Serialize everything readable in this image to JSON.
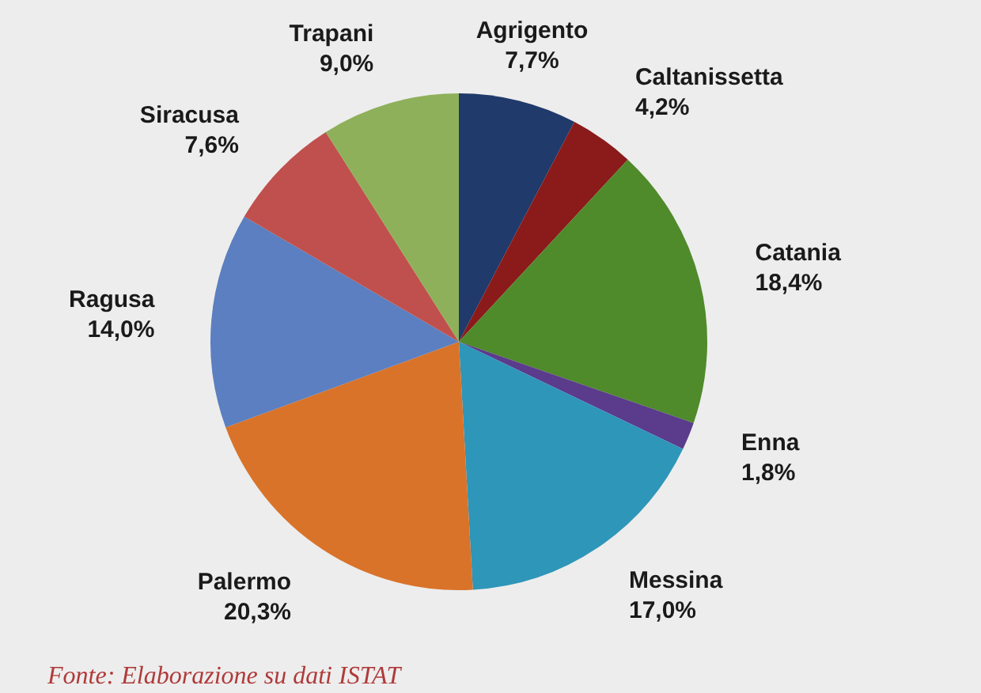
{
  "chart_data": {
    "type": "pie",
    "categories": [
      "Agrigento",
      "Caltanissetta",
      "Catania",
      "Enna",
      "Messina",
      "Palermo",
      "Ragusa",
      "Siracusa",
      "Trapani"
    ],
    "values": [
      7.7,
      4.2,
      18.4,
      1.8,
      17.0,
      20.3,
      14.0,
      7.6,
      9.0
    ],
    "colors": [
      "#1f3a6b",
      "#8b1a1a",
      "#4f8a2b",
      "#5b3b8c",
      "#2e96b8",
      "#d9732a",
      "#5b7fc0",
      "#c0504d",
      "#8fb05a"
    ],
    "value_labels": [
      "7,7%",
      "4,2%",
      "18,4%",
      "1,8%",
      "17,0%",
      "20,3%",
      "14,0%",
      "7,6%",
      "9,0%"
    ],
    "legend": false,
    "annotations": [
      "Fonte: Elaborazione su dati ISTAT"
    ]
  }
}
